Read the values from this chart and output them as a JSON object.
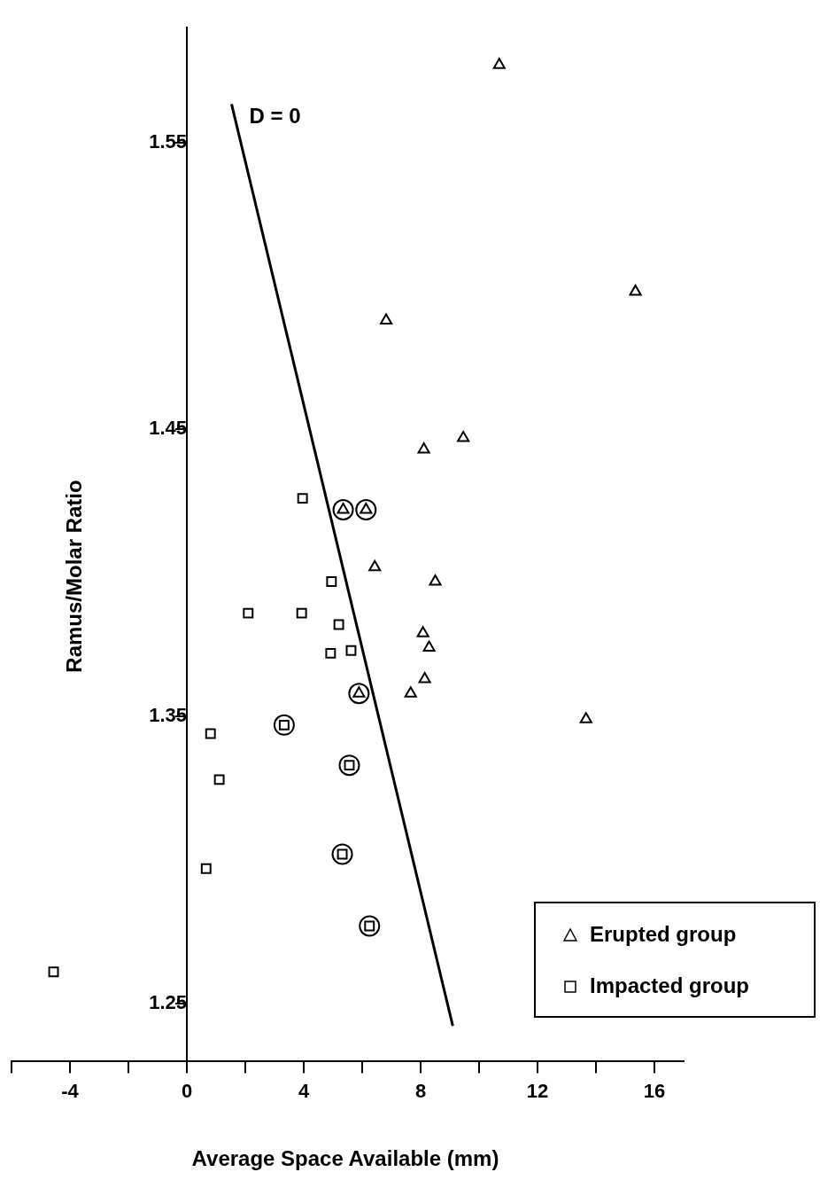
{
  "chart_data": {
    "type": "scatter",
    "xlabel": "Average Space Available (mm)",
    "ylabel": "Ramus/Molar Ratio",
    "xlim": [
      -6,
      17
    ],
    "xticks": [
      {
        "value": -6,
        "label": null
      },
      -4,
      {
        "value": -2,
        "label": null
      },
      0,
      {
        "value": 2,
        "label": null
      },
      4,
      {
        "value": 6,
        "label": null
      },
      8,
      {
        "value": 10,
        "label": null
      },
      12,
      {
        "value": 14,
        "label": null
      },
      16
    ],
    "ylim": [
      1.23,
      1.59
    ],
    "yticks": [
      1.25,
      1.35,
      1.45,
      1.55
    ],
    "grid": false,
    "legend": "bottom right",
    "series": [
      {
        "name": "Erupted group",
        "color": "#000000",
        "marker": "triangle",
        "x": [
          10.69,
          15.35,
          6.82,
          9.46,
          8.11,
          5.35,
          6.13,
          6.43,
          8.5,
          8.08,
          8.29,
          8.14,
          7.66,
          5.89,
          13.66
        ],
        "values": [
          1.577,
          1.498,
          1.488,
          1.447,
          1.443,
          1.422,
          1.422,
          1.402,
          1.397,
          1.379,
          1.374,
          1.363,
          1.358,
          1.358,
          1.349
        ]
      },
      {
        "name": "Impacted group",
        "color": "#000000",
        "marker": "square",
        "x": [
          3.96,
          4.95,
          2.1,
          3.93,
          5.2,
          4.92,
          5.62,
          3.33,
          0.81,
          1.11,
          5.56,
          5.32,
          0.66,
          6.25,
          -4.56
        ],
        "values": [
          1.426,
          1.397,
          1.386,
          1.386,
          1.382,
          1.372,
          1.373,
          1.347,
          1.344,
          1.328,
          1.333,
          1.302,
          1.297,
          1.277,
          1.261
        ]
      },
      {
        "color": "#000000",
        "marker": "circle",
        "x": [
          5.35,
          6.13,
          5.89,
          3.33,
          5.56,
          5.32,
          6.25
        ],
        "values": [
          1.422,
          1.422,
          1.358,
          1.347,
          1.333,
          1.302,
          1.277
        ]
      },
      {
        "name": "D = 0",
        "type": "line",
        "color": "#000000",
        "marker": "none",
        "line_style": "solid",
        "x": [
          1.53,
          9.1
        ],
        "values": [
          1.5634,
          1.2422
        ]
      }
    ]
  }
}
